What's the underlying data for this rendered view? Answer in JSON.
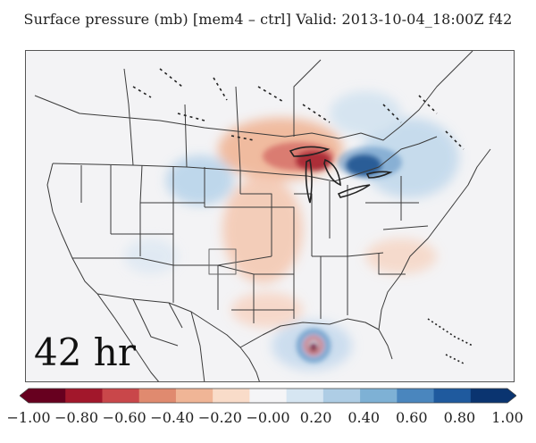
{
  "figure": {
    "title": "Surface pressure (mb) [mem4 – ctrl] Valid: 2013-10-04_18:00Z f42",
    "forecast_label": "42 hr"
  },
  "colorbar": {
    "ticks": [
      "−1.00",
      "−0.80",
      "−0.60",
      "−0.40",
      "−0.20",
      "−0.00",
      "0.20",
      "0.40",
      "0.60",
      "0.80",
      "1.00"
    ],
    "min": -1.0,
    "max": 1.0,
    "colors": [
      "#67001f",
      "#a2172b",
      "#c9474a",
      "#e08a6f",
      "#f0b596",
      "#f9dcc9",
      "#f5f5f7",
      "#d6e6f2",
      "#aecde5",
      "#7eb1d5",
      "#4a86be",
      "#1f5a9e",
      "#0a3470"
    ],
    "extend": "both"
  },
  "colors": {
    "background": "#f3f3f5",
    "boundaries": "#3a3a3a",
    "lakes": "#222222"
  }
}
